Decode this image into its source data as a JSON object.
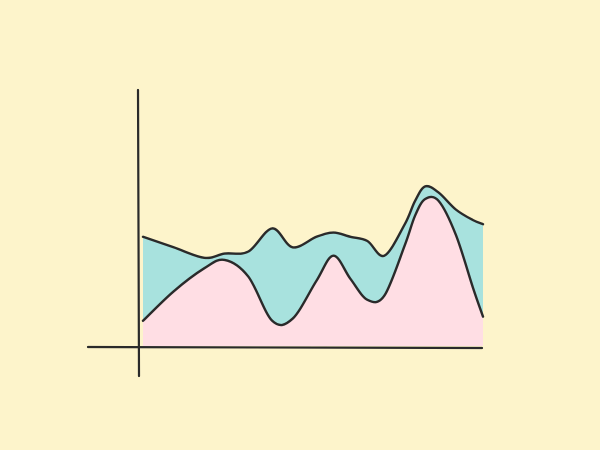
{
  "colors": {
    "background": "#FDF4CB",
    "upper_fill": "#A8E2DE",
    "lower_fill": "#FFDEE4",
    "stroke": "#2A2A2A"
  },
  "chart_data": {
    "type": "area",
    "stacked": true,
    "title": "",
    "xlabel": "",
    "ylabel": "",
    "grid": false,
    "legend": "none",
    "xlim": [
      0,
      100
    ],
    "ylim": [
      0,
      100
    ],
    "x": [
      0,
      9,
      18,
      24,
      31,
      38,
      44,
      51,
      56,
      61,
      66,
      71,
      77,
      80,
      83,
      87,
      92,
      97,
      100
    ],
    "series": [
      {
        "values": [
          12,
          26,
          37,
          41,
          33,
          12,
          13,
          31,
          43,
          32,
          22,
          24,
          48,
          62,
          70,
          69,
          53,
          28,
          14
        ]
      },
      {
        "values": [
          40,
          21,
          5,
          3,
          12,
          44,
          34,
          21,
          11,
          20,
          28,
          19,
          10,
          7,
          6,
          4,
          12,
          32,
          44
        ]
      }
    ]
  }
}
